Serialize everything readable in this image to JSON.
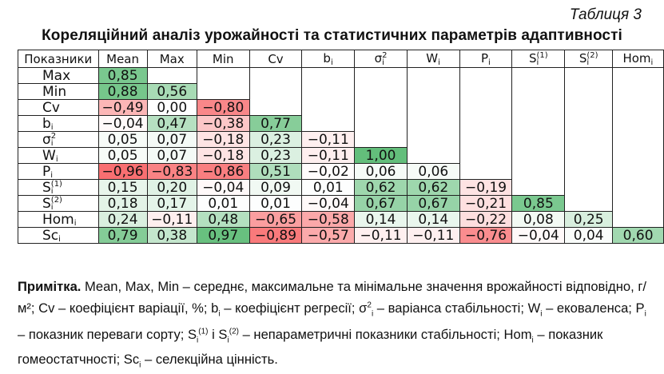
{
  "table_label": "Таблиця 3",
  "title": "Кореляційний аналіз урожайності та статистичних параметрів адаптивності",
  "columns": [
    {
      "main": "Показники",
      "sub": "",
      "sup": ""
    },
    {
      "main": "Mean",
      "sub": "",
      "sup": ""
    },
    {
      "main": "Max",
      "sub": "",
      "sup": ""
    },
    {
      "main": "Min",
      "sub": "",
      "sup": ""
    },
    {
      "main": "Cv",
      "sub": "",
      "sup": ""
    },
    {
      "main": "b",
      "sub": "i",
      "sup": ""
    },
    {
      "main": "σ",
      "sub": "i",
      "sup": "2"
    },
    {
      "main": "W",
      "sub": "i",
      "sup": ""
    },
    {
      "main": "P",
      "sub": "i",
      "sup": ""
    },
    {
      "main": "S",
      "sub": "i",
      "sup": "(1)"
    },
    {
      "main": "S",
      "sub": "i",
      "sup": "(2)"
    },
    {
      "main": "Hom",
      "sub": "i",
      "sup": ""
    }
  ],
  "rows": [
    {
      "main": "Max",
      "sub": "",
      "sup": "",
      "values": [
        0.85
      ]
    },
    {
      "main": "Min",
      "sub": "",
      "sup": "",
      "values": [
        0.88,
        0.56
      ]
    },
    {
      "main": "Cv",
      "sub": "",
      "sup": "",
      "values": [
        -0.49,
        0.0,
        -0.8
      ]
    },
    {
      "main": "b",
      "sub": "i",
      "sup": "",
      "values": [
        -0.04,
        0.47,
        -0.38,
        0.77
      ]
    },
    {
      "main": "σ",
      "sub": "i",
      "sup": "2",
      "values": [
        0.05,
        0.07,
        -0.18,
        0.23,
        -0.11
      ]
    },
    {
      "main": "W",
      "sub": "i",
      "sup": "",
      "values": [
        0.05,
        0.07,
        -0.18,
        0.23,
        -0.11,
        1.0
      ]
    },
    {
      "main": "P",
      "sub": "i",
      "sup": "",
      "values": [
        -0.96,
        -0.83,
        -0.86,
        0.51,
        -0.02,
        0.06,
        0.06
      ]
    },
    {
      "main": "S",
      "sub": "i",
      "sup": "(1)",
      "values": [
        0.15,
        0.2,
        -0.04,
        0.09,
        0.01,
        0.62,
        0.62,
        -0.19
      ]
    },
    {
      "main": "S",
      "sub": "i",
      "sup": "(2)",
      "values": [
        0.18,
        0.17,
        0.01,
        0.01,
        -0.04,
        0.67,
        0.67,
        -0.21,
        0.85
      ]
    },
    {
      "main": "Hom",
      "sub": "i",
      "sup": "",
      "values": [
        0.24,
        -0.11,
        0.48,
        -0.65,
        -0.58,
        0.14,
        0.14,
        -0.22,
        0.08,
        0.25
      ]
    },
    {
      "main": "Sc",
      "sub": "i",
      "sup": "",
      "values": [
        0.79,
        0.38,
        0.97,
        -0.89,
        -0.57,
        -0.11,
        -0.11,
        -0.76,
        -0.04,
        0.04,
        0.6
      ]
    }
  ],
  "colors": {
    "positive": "#63be7b",
    "negative": "#f8696b",
    "neutral": "#ffffff"
  },
  "note": {
    "label": "Примітка.",
    "segments": [
      {
        "t": " Mean, Max, Min – середнє, максимальне та мінімальне значення врожайності відповідно, г/м²; Cv – коефіцієнт варіації, %; b"
      },
      {
        "t": "i",
        "sub": true
      },
      {
        "t": " – коефіцієнт регресії; σ"
      },
      {
        "t": "2",
        "sup": true
      },
      {
        "t": "i",
        "sub": true
      },
      {
        "t": " – варіанса стабільності; W"
      },
      {
        "t": "i",
        "sub": true
      },
      {
        "t": " – ековаленса; P"
      },
      {
        "t": "i",
        "sub": true
      },
      {
        "t": " – показник переваги сорту; S"
      },
      {
        "t": "i",
        "sub": true
      },
      {
        "t": "(1)",
        "sup": true
      },
      {
        "t": " і S"
      },
      {
        "t": "i",
        "sub": true
      },
      {
        "t": "(2)",
        "sup": true
      },
      {
        "t": " – непараметричні показники стабільності; Hom"
      },
      {
        "t": "i",
        "sub": true
      },
      {
        "t": " – показник гомеостатчності; Sc"
      },
      {
        "t": "i",
        "sub": true
      },
      {
        "t": " – селекційна цінність."
      }
    ]
  }
}
